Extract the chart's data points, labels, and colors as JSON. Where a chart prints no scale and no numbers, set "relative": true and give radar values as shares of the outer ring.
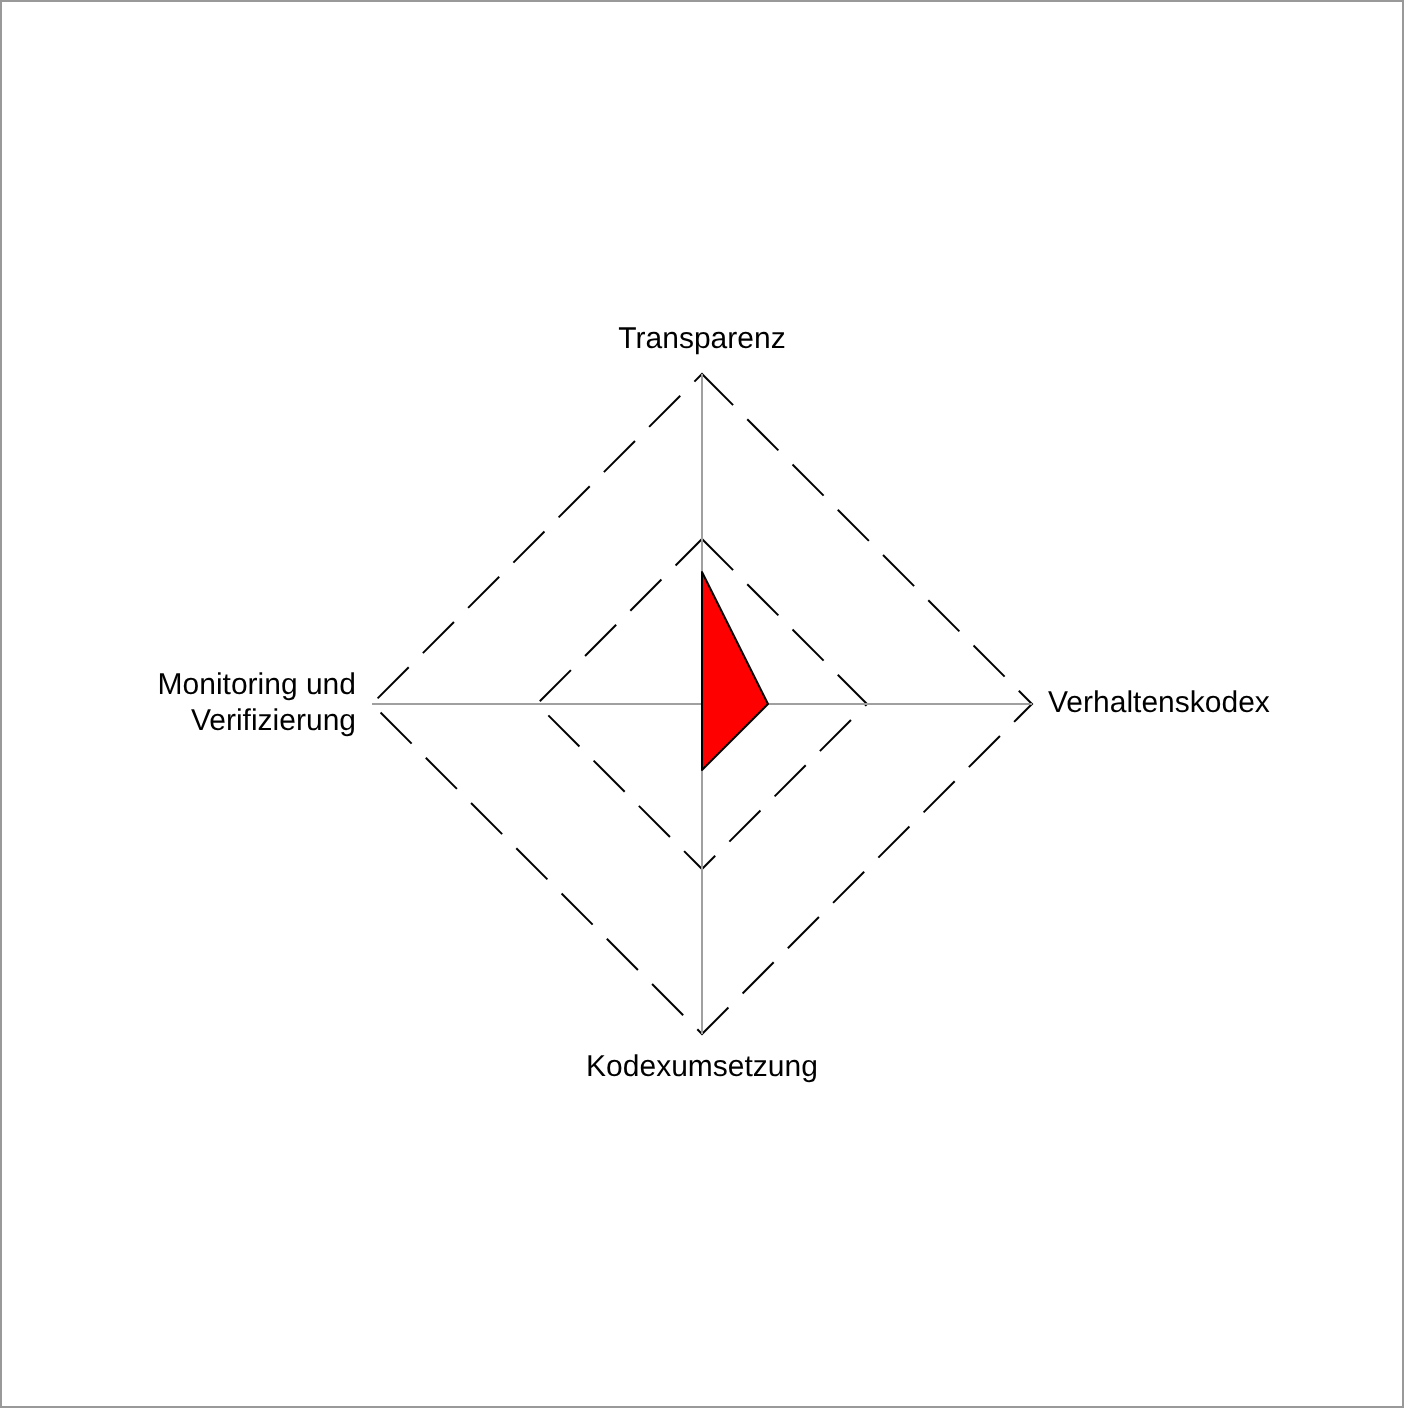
{
  "chart_data": {
    "type": "radar",
    "categories": [
      "Transparenz",
      "Verhaltenskodex",
      "Kodexumsetzung",
      "Monitoring und Verifizierung"
    ],
    "relative": true,
    "grid": true,
    "legend": false,
    "marker": "none",
    "series": [
      {
        "color": "#ff0000",
        "values": [
          0.4,
          0.2,
          0.2,
          0
        ]
      }
    ]
  }
}
